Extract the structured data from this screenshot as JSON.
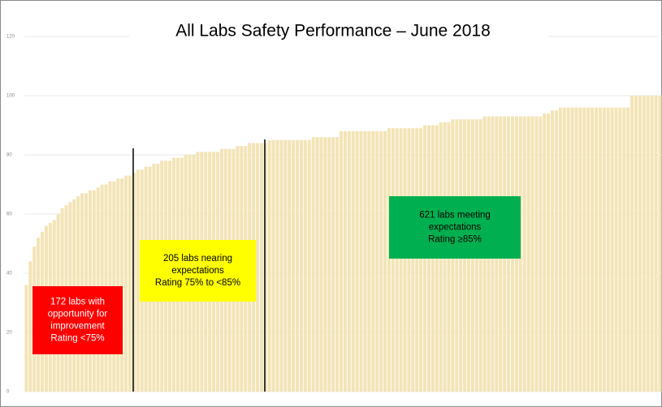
{
  "chart_data": {
    "type": "bar",
    "title": "All Labs Safety Performance – June 2018",
    "color": "#f3e4b6",
    "ylim": [
      0,
      120
    ],
    "yticks": [
      0,
      20,
      40,
      60,
      80,
      100,
      120
    ],
    "grid": true,
    "values": [
      36,
      44,
      49,
      52,
      54,
      56,
      57,
      58,
      60,
      62,
      63,
      64,
      65,
      66,
      67,
      67,
      68,
      68,
      69,
      70,
      70,
      71,
      71,
      72,
      72,
      73,
      73,
      74,
      75,
      75,
      76,
      76,
      77,
      77,
      78,
      78,
      78,
      79,
      79,
      79,
      80,
      80,
      80,
      81,
      81,
      81,
      81,
      81,
      81,
      82,
      82,
      82,
      82,
      83,
      83,
      83,
      84,
      84,
      84,
      84,
      84,
      85,
      85,
      85,
      85,
      85,
      85,
      85,
      85,
      85,
      85,
      85,
      86,
      86,
      86,
      86,
      86,
      86,
      86,
      88,
      88,
      88,
      88,
      88,
      88,
      88,
      88,
      88,
      88,
      88,
      88,
      89,
      89,
      89,
      89,
      89,
      89,
      89,
      89,
      89,
      90,
      90,
      90,
      90,
      91,
      91,
      91,
      92,
      92,
      92,
      92,
      92,
      92,
      92,
      92,
      93,
      93,
      93,
      93,
      93,
      93,
      93,
      93,
      93,
      93,
      93,
      93,
      93,
      93,
      93,
      94,
      94,
      95,
      95,
      96,
      96,
      96,
      96,
      96,
      96,
      96,
      96,
      96,
      96,
      96,
      96,
      96,
      96,
      96,
      96,
      96,
      96,
      100,
      100,
      100,
      100,
      100,
      100,
      100,
      100
    ],
    "annotations": [
      {
        "lines": [
          "172 labs with",
          "opportunity for",
          "improvement",
          "Rating <75%"
        ],
        "color": "#ff0000",
        "text_color": "#ffffff"
      },
      {
        "lines": [
          "205 labs nearing",
          "expectations",
          "Rating 75% to <85%"
        ],
        "color": "#ffff00",
        "text_color": "#000000"
      },
      {
        "lines": [
          "621 labs meeting",
          "expectations",
          "Rating ≥85%"
        ],
        "color": "#00b050",
        "text_color": "#000000"
      }
    ]
  }
}
